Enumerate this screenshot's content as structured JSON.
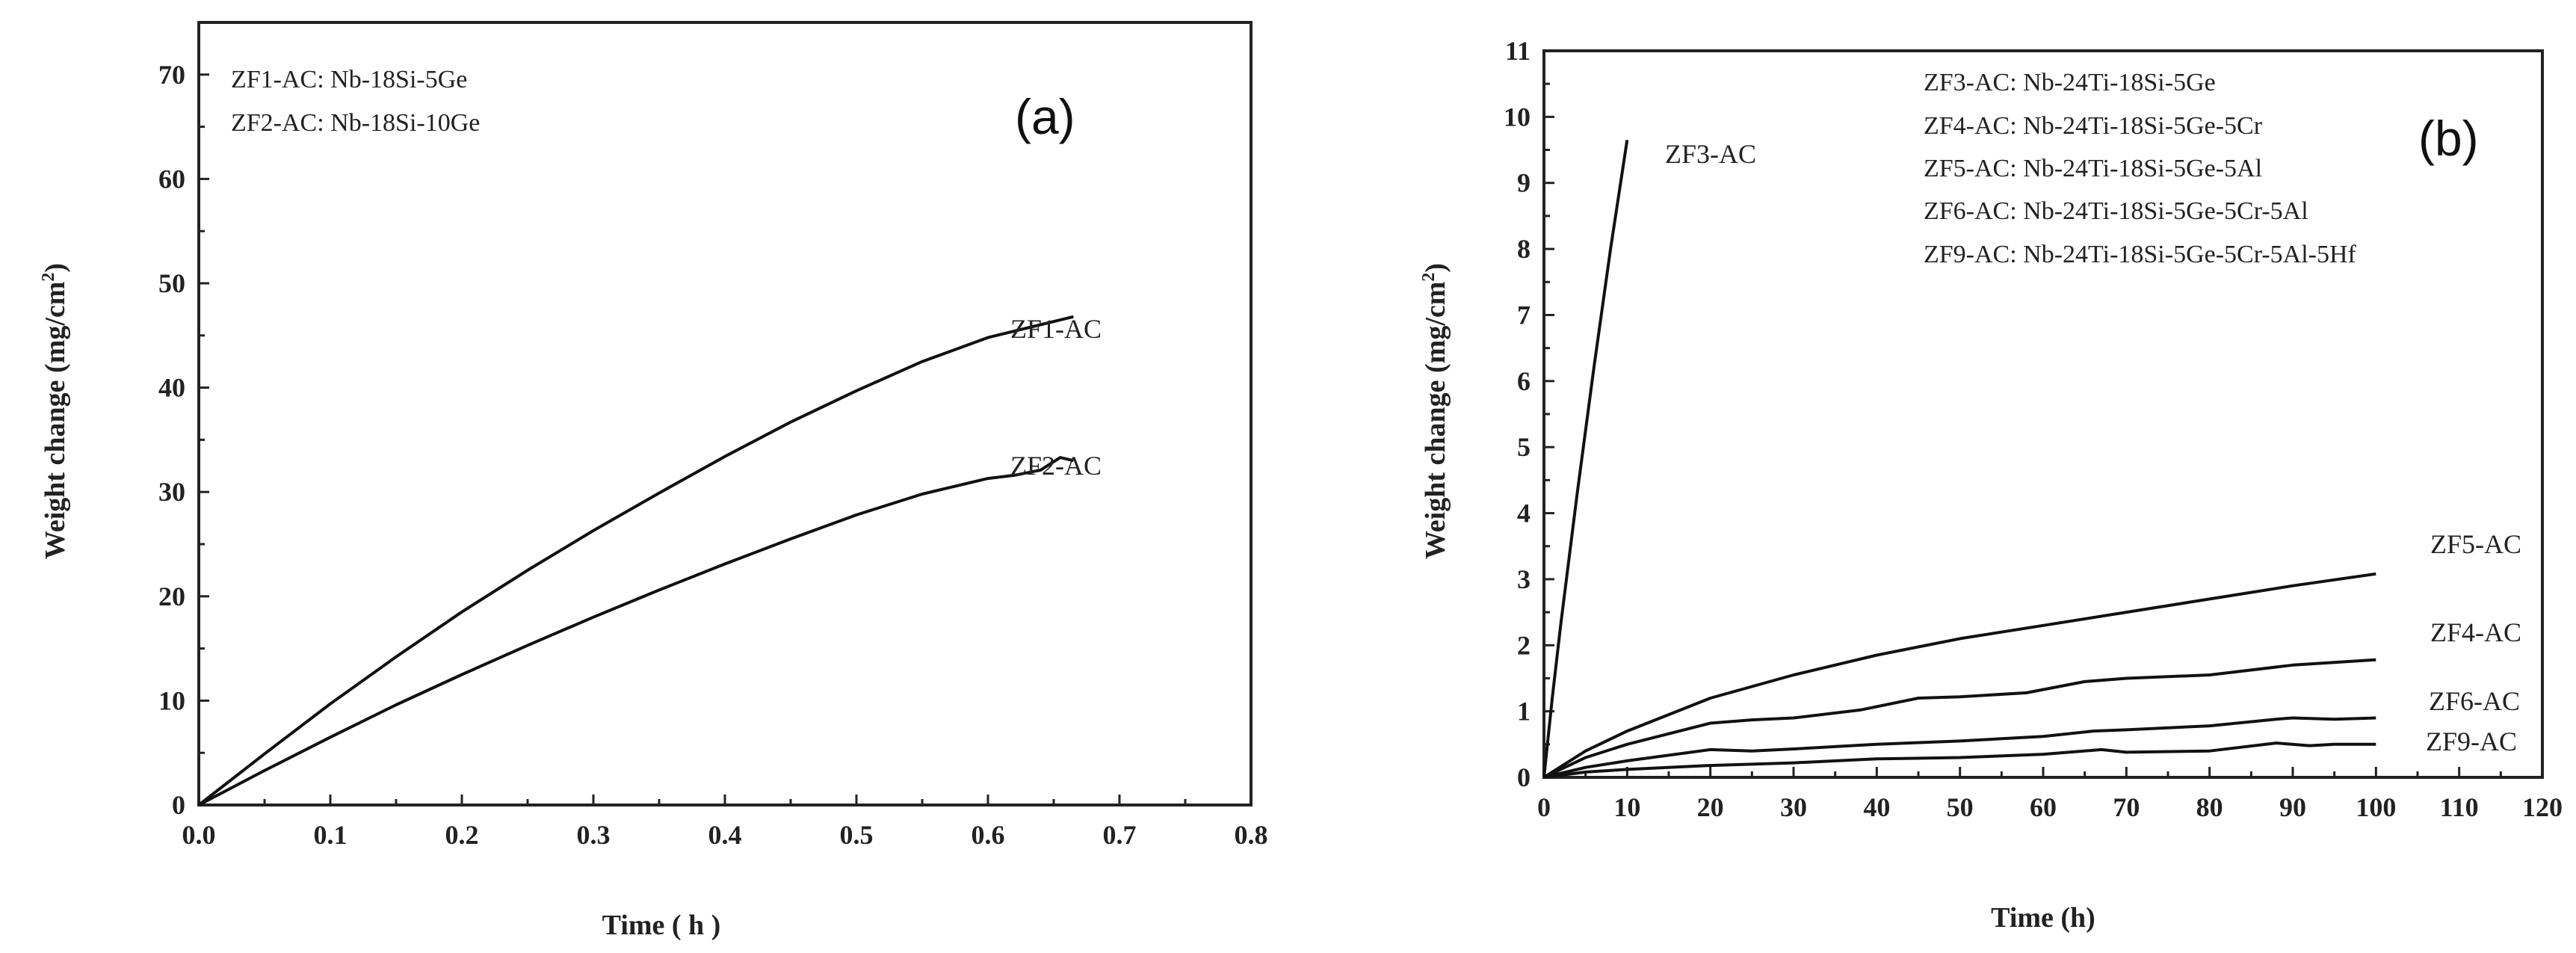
{
  "chart_data": [
    {
      "type": "line",
      "panel_label": "(a)",
      "xlabel": "Time ( h )",
      "ylabel": "Weight change (mg/cm",
      "ylabel_sup": "2",
      "ylabel_tail": ")",
      "xlim": [
        0,
        0.8
      ],
      "ylim": [
        0,
        75
      ],
      "xticks": [
        0.0,
        0.1,
        0.2,
        0.3,
        0.4,
        0.5,
        0.6,
        0.7,
        0.8
      ],
      "xtick_labels": [
        "0.0",
        "0.1",
        "0.2",
        "0.3",
        "0.4",
        "0.5",
        "0.6",
        "0.7",
        "0.8"
      ],
      "yticks": [
        0,
        10,
        20,
        30,
        40,
        50,
        60,
        70
      ],
      "ytick_labels": [
        "0",
        "10",
        "20",
        "30",
        "40",
        "50",
        "60",
        "70"
      ],
      "legend": [
        "ZF1-AC: Nb-18Si-5Ge",
        "ZF2-AC: Nb-18Si-10Ge"
      ],
      "series": [
        {
          "name": "ZF1-AC",
          "x": [
            0,
            0.05,
            0.1,
            0.15,
            0.2,
            0.25,
            0.3,
            0.35,
            0.4,
            0.45,
            0.5,
            0.55,
            0.6,
            0.665
          ],
          "y": [
            0,
            4.9,
            9.7,
            14.2,
            18.5,
            22.5,
            26.3,
            29.9,
            33.4,
            36.7,
            39.7,
            42.5,
            44.8,
            46.8
          ]
        },
        {
          "name": "ZF2-AC",
          "x": [
            0,
            0.05,
            0.1,
            0.15,
            0.2,
            0.25,
            0.3,
            0.35,
            0.4,
            0.45,
            0.5,
            0.55,
            0.6,
            0.62,
            0.64,
            0.655,
            0.665
          ],
          "y": [
            0,
            3.3,
            6.5,
            9.6,
            12.5,
            15.3,
            18.0,
            20.6,
            23.1,
            25.5,
            27.8,
            29.8,
            31.3,
            31.6,
            32.1,
            33.3,
            33.0
          ]
        }
      ],
      "annotations": [
        "ZF1-AC",
        "ZF2-AC"
      ]
    },
    {
      "type": "line",
      "panel_label": "(b)",
      "xlabel": "Time (h)",
      "ylabel": "Weight change (mg/cm",
      "ylabel_sup": "2",
      "ylabel_tail": ")",
      "xlim": [
        0,
        120
      ],
      "ylim": [
        0,
        11
      ],
      "xticks": [
        0,
        10,
        20,
        30,
        40,
        50,
        60,
        70,
        80,
        90,
        100,
        110,
        120
      ],
      "xtick_labels": [
        "0",
        "10",
        "20",
        "30",
        "40",
        "50",
        "60",
        "70",
        "80",
        "90",
        "100",
        "110",
        "120"
      ],
      "yticks": [
        0,
        1,
        2,
        3,
        4,
        5,
        6,
        7,
        8,
        9,
        10,
        11
      ],
      "ytick_labels": [
        "0",
        "1",
        "2",
        "3",
        "4",
        "5",
        "6",
        "7",
        "8",
        "9",
        "10",
        "11"
      ],
      "legend": [
        "ZF3-AC: Nb-24Ti-18Si-5Ge",
        "ZF4-AC: Nb-24Ti-18Si-5Ge-5Cr",
        "ZF5-AC: Nb-24Ti-18Si-5Ge-5Al",
        "ZF6-AC: Nb-24Ti-18Si-5Ge-5Cr-5Al",
        "ZF9-AC: Nb-24Ti-18Si-5Ge-5Cr-5Al-5Hf"
      ],
      "series": [
        {
          "name": "ZF3-AC",
          "x": [
            0,
            1,
            2,
            4,
            6,
            8,
            10
          ],
          "y": [
            0,
            1.2,
            2.3,
            4.3,
            6.2,
            8.0,
            9.65
          ]
        },
        {
          "name": "ZF5-AC",
          "x": [
            0,
            5,
            10,
            20,
            30,
            40,
            50,
            60,
            70,
            80,
            90,
            100
          ],
          "y": [
            0,
            0.4,
            0.7,
            1.2,
            1.55,
            1.85,
            2.1,
            2.3,
            2.5,
            2.7,
            2.9,
            3.08
          ]
        },
        {
          "name": "ZF4-AC",
          "x": [
            0,
            5,
            10,
            20,
            25,
            30,
            38,
            45,
            50,
            58,
            65,
            70,
            80,
            90,
            100
          ],
          "y": [
            0,
            0.3,
            0.5,
            0.82,
            0.87,
            0.9,
            1.02,
            1.2,
            1.22,
            1.28,
            1.45,
            1.5,
            1.55,
            1.7,
            1.78
          ]
        },
        {
          "name": "ZF6-AC",
          "x": [
            0,
            5,
            10,
            20,
            25,
            30,
            40,
            50,
            60,
            66,
            70,
            80,
            88,
            90,
            95,
            100
          ],
          "y": [
            0,
            0.15,
            0.25,
            0.42,
            0.4,
            0.43,
            0.5,
            0.55,
            0.62,
            0.7,
            0.72,
            0.78,
            0.88,
            0.9,
            0.88,
            0.9
          ]
        },
        {
          "name": "ZF9-AC",
          "x": [
            0,
            5,
            10,
            20,
            30,
            40,
            50,
            60,
            67,
            70,
            80,
            88,
            92,
            95,
            100
          ],
          "y": [
            0,
            0.08,
            0.12,
            0.18,
            0.22,
            0.28,
            0.3,
            0.35,
            0.42,
            0.38,
            0.4,
            0.52,
            0.48,
            0.5,
            0.5
          ]
        }
      ],
      "annotations": [
        "ZF3-AC",
        "ZF5-AC",
        "ZF4-AC",
        "ZF6-AC",
        "ZF9-AC"
      ]
    }
  ]
}
